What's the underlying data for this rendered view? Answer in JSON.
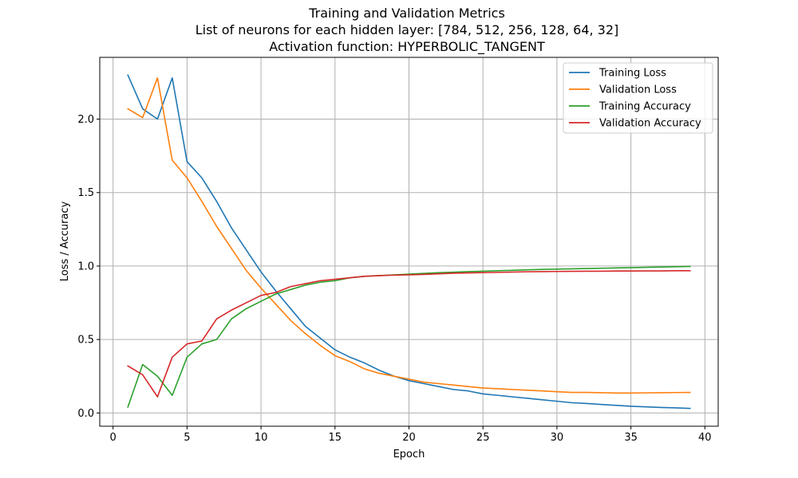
{
  "chart_data": {
    "type": "line",
    "title": "Training and Validation Metrics",
    "subtitle_lines": [
      "List of neurons for each hidden layer: [784, 512, 256, 128, 64, 32]",
      "Activation function: HYPERBOLIC_TANGENT"
    ],
    "xlabel": "Epoch",
    "ylabel": "Loss / Accuracy",
    "xlim": [
      -0.9,
      40.9
    ],
    "ylim": [
      -0.09,
      2.42
    ],
    "xticks": [
      0,
      5,
      10,
      15,
      20,
      25,
      30,
      35,
      40
    ],
    "yticks": [
      0.0,
      0.5,
      1.0,
      1.5,
      2.0
    ],
    "ytick_labels": [
      "0.0",
      "0.5",
      "1.0",
      "1.5",
      "2.0"
    ],
    "grid": true,
    "legend_position": "top-right",
    "x": [
      1,
      2,
      3,
      4,
      5,
      6,
      7,
      8,
      9,
      10,
      11,
      12,
      13,
      14,
      15,
      16,
      17,
      18,
      19,
      20,
      21,
      22,
      23,
      24,
      25,
      26,
      27,
      28,
      29,
      30,
      31,
      32,
      33,
      34,
      35,
      36,
      37,
      38,
      39
    ],
    "series": [
      {
        "name": "Training Loss",
        "color": "#1f77b4",
        "values": [
          2.3,
          2.07,
          2.0,
          2.28,
          1.71,
          1.6,
          1.44,
          1.26,
          1.11,
          0.96,
          0.83,
          0.71,
          0.59,
          0.51,
          0.43,
          0.38,
          0.34,
          0.29,
          0.25,
          0.22,
          0.2,
          0.18,
          0.16,
          0.15,
          0.13,
          0.12,
          0.11,
          0.1,
          0.09,
          0.08,
          0.07,
          0.065,
          0.058,
          0.052,
          0.046,
          0.042,
          0.038,
          0.035,
          0.031
        ]
      },
      {
        "name": "Validation Loss",
        "color": "#ff7f0e",
        "values": [
          2.07,
          2.01,
          2.28,
          1.72,
          1.6,
          1.44,
          1.27,
          1.12,
          0.97,
          0.85,
          0.74,
          0.63,
          0.54,
          0.46,
          0.39,
          0.35,
          0.3,
          0.27,
          0.25,
          0.23,
          0.21,
          0.2,
          0.19,
          0.18,
          0.17,
          0.165,
          0.16,
          0.155,
          0.15,
          0.145,
          0.14,
          0.14,
          0.138,
          0.136,
          0.136,
          0.137,
          0.138,
          0.139,
          0.14
        ]
      },
      {
        "name": "Training Accuracy",
        "color": "#2ca02c",
        "values": [
          0.04,
          0.33,
          0.25,
          0.12,
          0.38,
          0.47,
          0.5,
          0.64,
          0.71,
          0.76,
          0.81,
          0.84,
          0.87,
          0.89,
          0.9,
          0.92,
          0.93,
          0.935,
          0.94,
          0.945,
          0.95,
          0.955,
          0.958,
          0.962,
          0.965,
          0.968,
          0.971,
          0.974,
          0.977,
          0.979,
          0.981,
          0.983,
          0.985,
          0.987,
          0.989,
          0.991,
          0.993,
          0.995,
          0.997
        ]
      },
      {
        "name": "Validation Accuracy",
        "color": "#d62728",
        "values": [
          0.32,
          0.26,
          0.11,
          0.38,
          0.47,
          0.49,
          0.64,
          0.7,
          0.75,
          0.8,
          0.82,
          0.86,
          0.88,
          0.9,
          0.91,
          0.92,
          0.93,
          0.935,
          0.938,
          0.94,
          0.943,
          0.947,
          0.951,
          0.953,
          0.955,
          0.957,
          0.959,
          0.961,
          0.962,
          0.963,
          0.964,
          0.965,
          0.965,
          0.966,
          0.966,
          0.967,
          0.967,
          0.968,
          0.968
        ]
      }
    ]
  }
}
